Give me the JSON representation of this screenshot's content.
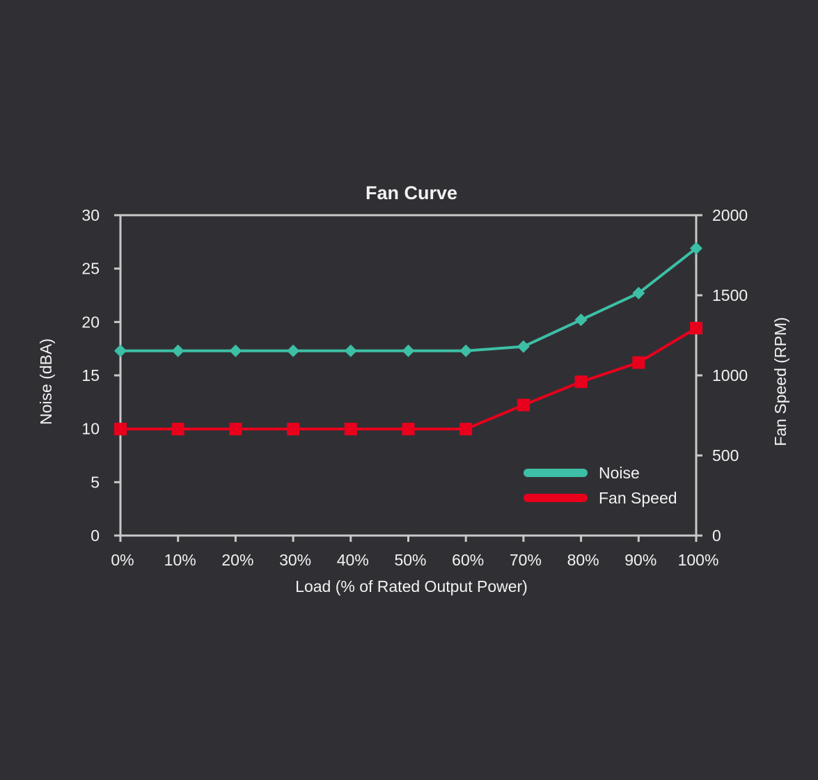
{
  "chart_data": {
    "type": "line",
    "title": "Fan Curve",
    "xlabel": "Load (% of Rated Output Power)",
    "ylabel": "Noise (dBA)",
    "y2label": "Fan Speed (RPM)",
    "categories": [
      "0%",
      "10%",
      "20%",
      "30%",
      "40%",
      "50%",
      "60%",
      "70%",
      "80%",
      "90%",
      "100%"
    ],
    "ylim": [
      0,
      30
    ],
    "yticks": [
      0,
      5,
      10,
      15,
      20,
      25,
      30
    ],
    "y2lim": [
      0,
      2000
    ],
    "y2ticks": [
      0,
      500,
      1000,
      1500,
      2000
    ],
    "legend_position": "bottom-right",
    "grid": false,
    "series": [
      {
        "name": "Noise",
        "axis": "left",
        "marker": "diamond",
        "color": "#3dbfa5",
        "values": [
          17.3,
          17.3,
          17.3,
          17.3,
          17.3,
          17.3,
          17.3,
          17.7,
          20.2,
          22.7,
          26.9
        ]
      },
      {
        "name": "Fan Speed",
        "axis": "right",
        "marker": "square",
        "color": "#e8001c",
        "values": [
          665,
          665,
          665,
          665,
          665,
          665,
          665,
          815,
          960,
          1080,
          1295
        ]
      }
    ]
  }
}
